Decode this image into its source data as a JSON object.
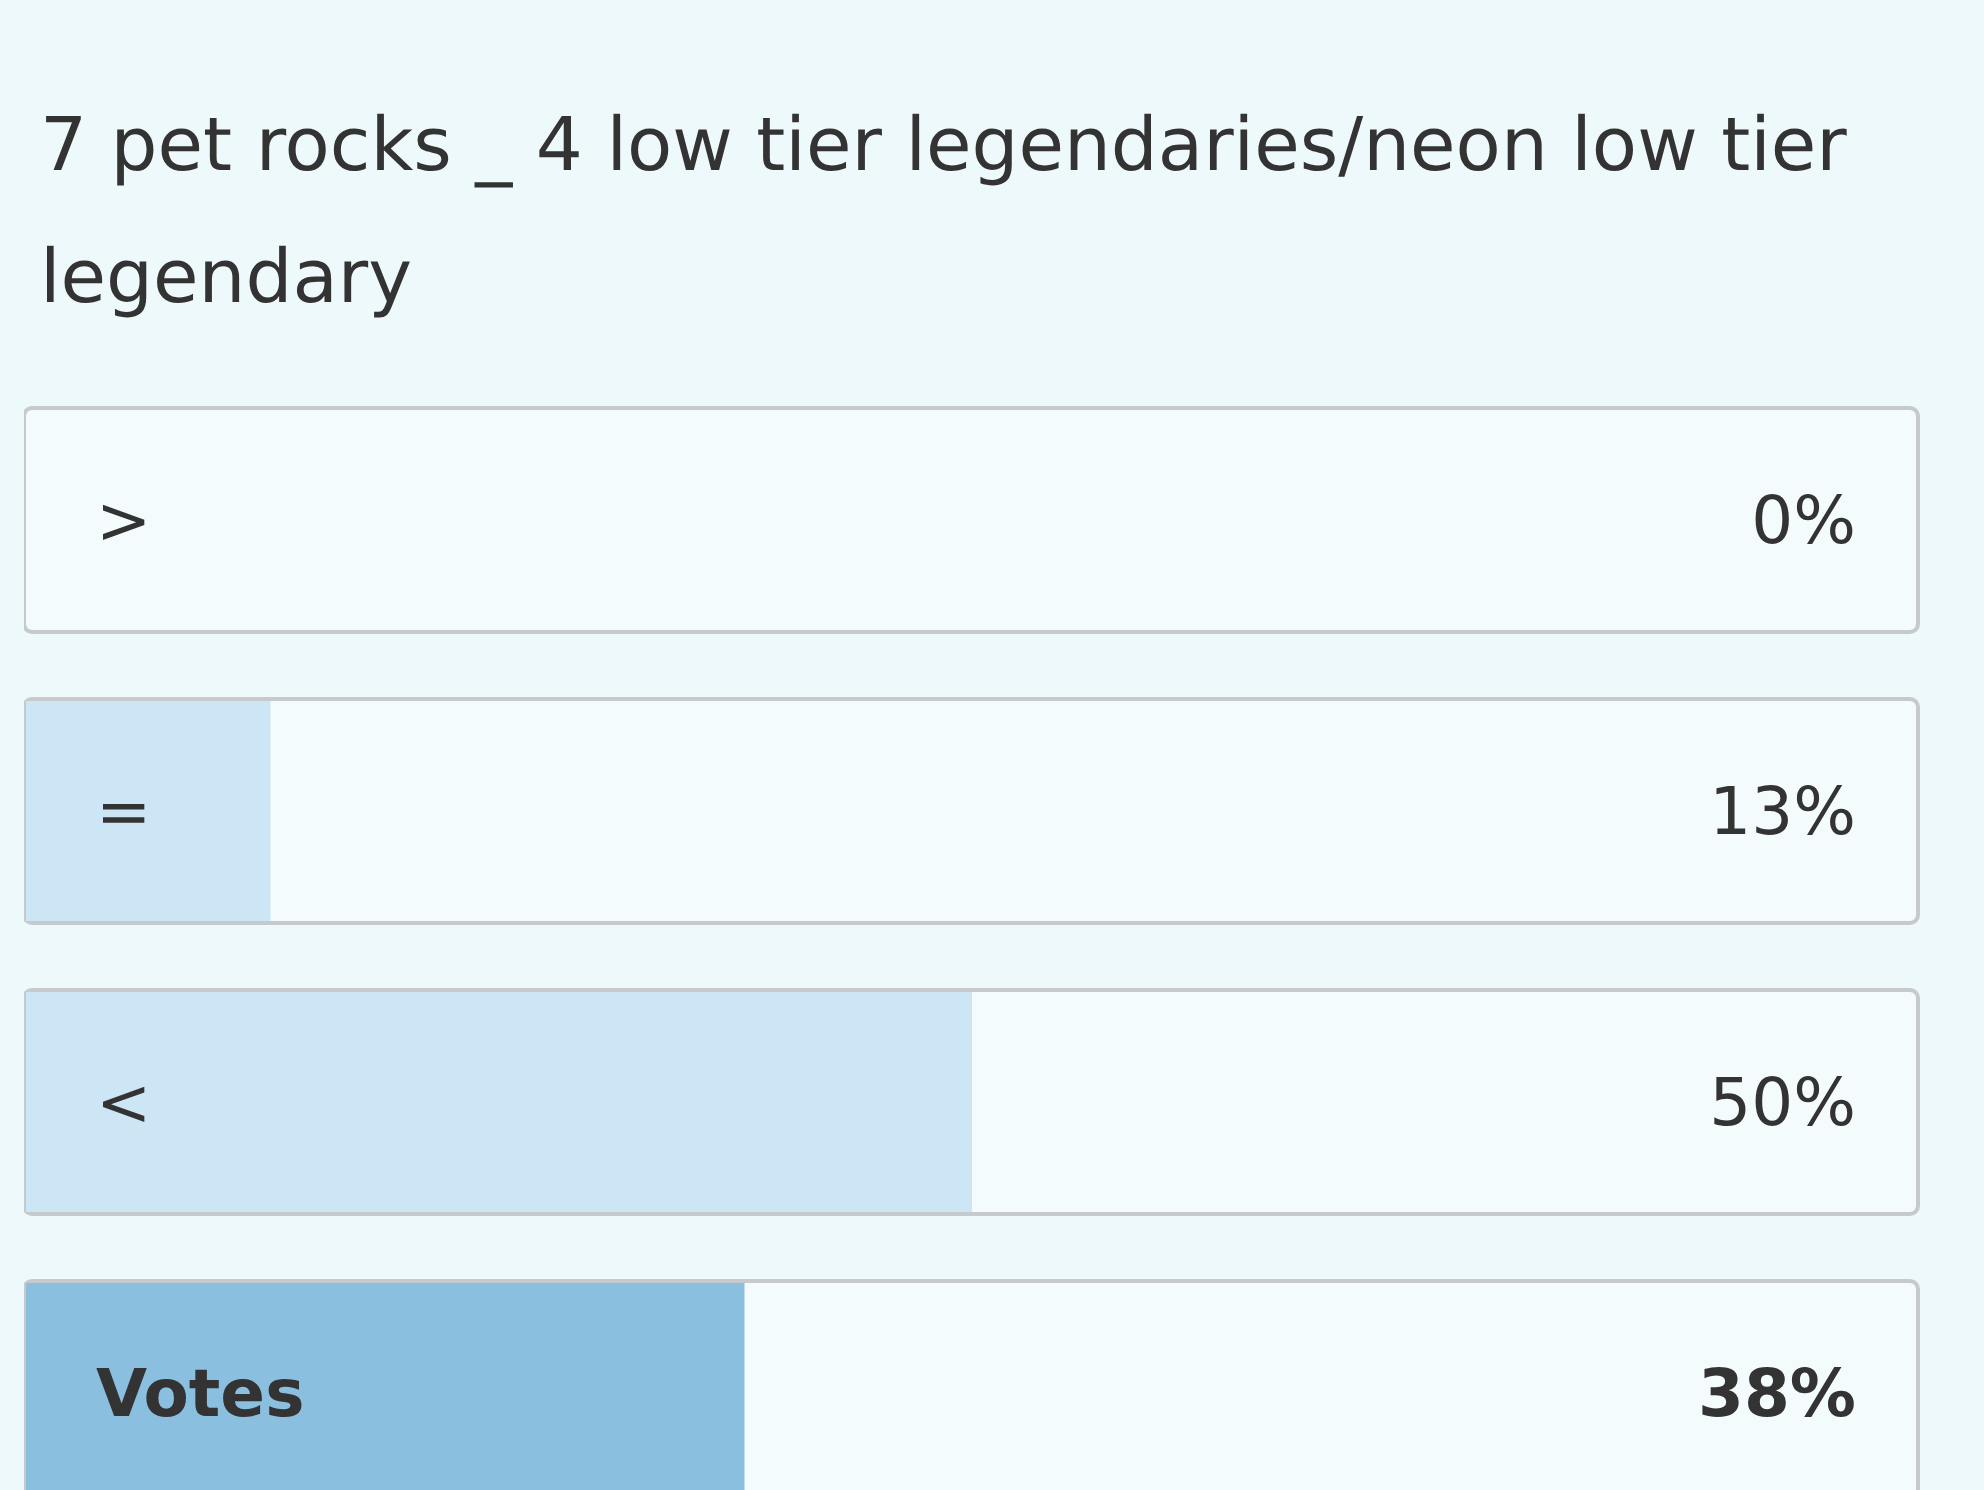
{
  "chart_data": {
    "type": "bar",
    "orientation": "horizontal",
    "title": "7 pet rocks _ 4 low tier legendaries/neon low tier legendary",
    "categories": [
      ">",
      "=",
      "<",
      "Votes"
    ],
    "values": [
      0,
      13,
      50,
      38
    ],
    "value_labels": [
      "0%",
      "13%",
      "50%",
      "38%"
    ],
    "colors": [
      "#cde6f5",
      "#cde6f5",
      "#cde6f5",
      "#8bbfdf"
    ],
    "xlim": [
      0,
      100
    ],
    "tick_labels": false,
    "grid": false,
    "legend": false
  }
}
